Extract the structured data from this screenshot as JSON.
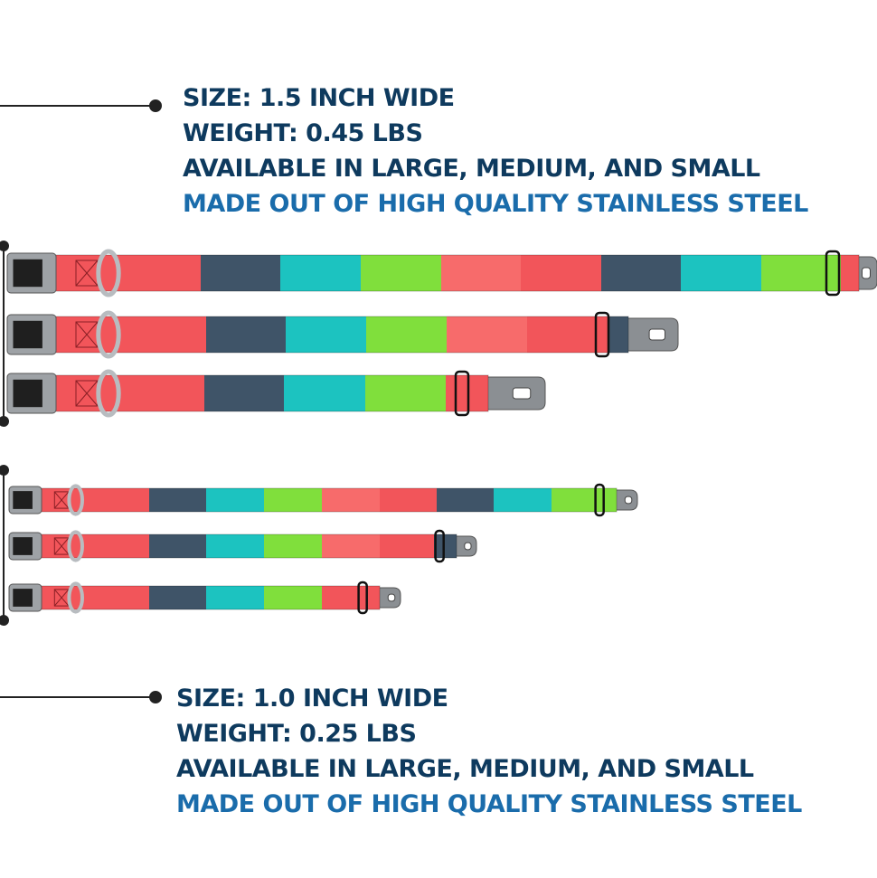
{
  "spec_top": {
    "lines": [
      "SIZE: 1.5 INCH WIDE",
      "WEIGHT: 0.45 LBS",
      "AVAILABLE IN LARGE, MEDIUM, AND SMALL",
      "MADE OUT OF HIGH QUALITY STAINLESS STEEL"
    ]
  },
  "spec_bottom": {
    "lines": [
      "SIZE: 1.0 INCH WIDE",
      "WEIGHT: 0.25 LBS",
      "AVAILABLE IN LARGE, MEDIUM, AND SMALL",
      "MADE OUT OF HIGH QUALITY STAINLESS STEEL"
    ]
  }
}
